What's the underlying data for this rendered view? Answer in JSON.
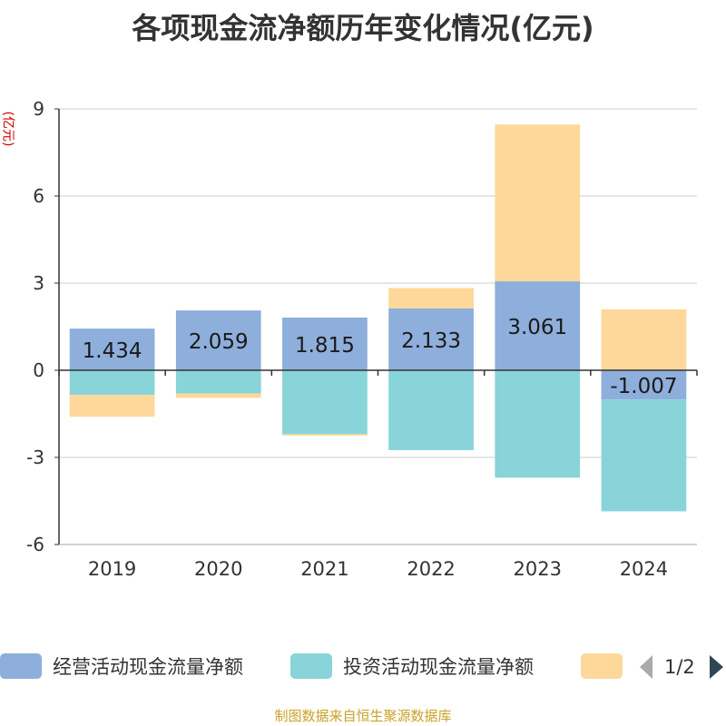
{
  "chart_data": {
    "type": "bar",
    "stacked": true,
    "title": "各项现金流净额历年变化情况(亿元)",
    "ylabel": "(亿元)",
    "source": "制图数据来自恒生聚源数据库",
    "categories": [
      "2019",
      "2020",
      "2021",
      "2022",
      "2023",
      "2024"
    ],
    "ylim": [
      -6,
      9
    ],
    "yticks": [
      -6,
      -3,
      0,
      3,
      6,
      9
    ],
    "grid": true,
    "legend_position": "bottom",
    "legend_page": "1/2",
    "series": [
      {
        "name": "经营活动现金流量净额",
        "color": "#8eaedb",
        "values": [
          1.434,
          2.059,
          1.815,
          2.133,
          3.061,
          -1.007
        ],
        "labels": [
          "1.434",
          "2.059",
          "1.815",
          "2.133",
          "3.061",
          "-1.007"
        ]
      },
      {
        "name": "投资活动现金流量净额",
        "color": "#88d4d8",
        "values": [
          -0.85,
          -0.8,
          -2.2,
          -2.75,
          -3.7,
          -3.85
        ]
      },
      {
        "name": "",
        "color": "#fdd89a",
        "values": [
          -0.75,
          -0.15,
          -0.05,
          0.7,
          5.4,
          2.1
        ]
      }
    ]
  }
}
